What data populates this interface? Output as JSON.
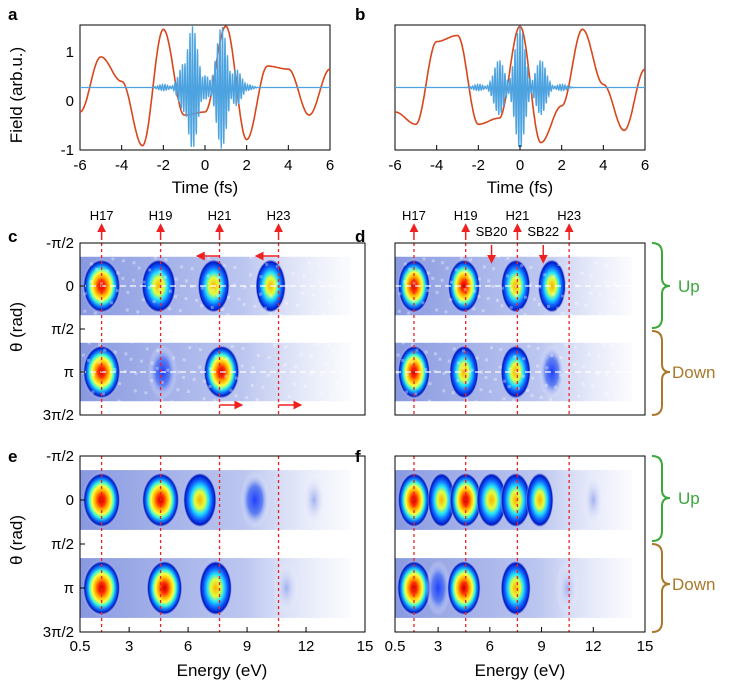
{
  "panels": {
    "a": {
      "letter": "a",
      "xlabel": "Time (fs)",
      "ylabel": "Field (arb.u.)",
      "xticks": [
        "-6",
        "-4",
        "-2",
        "0",
        "2",
        "4",
        "6"
      ],
      "yticks": [
        "1",
        "0",
        "-1"
      ]
    },
    "b": {
      "letter": "b",
      "xlabel": "Time (fs)",
      "xticks": [
        "-6",
        "-4",
        "-2",
        "0",
        "2",
        "4",
        "6"
      ]
    },
    "c": {
      "letter": "c",
      "ylabel": "θ (rad)",
      "harmonics": [
        "H17",
        "H19",
        "H21",
        "H23"
      ],
      "yticks": [
        "-π/2",
        "0",
        "π/2",
        "π",
        "3π/2"
      ]
    },
    "d": {
      "letter": "d",
      "harmonics": [
        "H17",
        "H19",
        "H21",
        "H23"
      ],
      "sidebands": [
        "SB20",
        "SB22"
      ]
    },
    "e": {
      "letter": "e",
      "ylabel": "θ (rad)",
      "xlabel": "Energy (eV)",
      "yticks": [
        "-π/2",
        "0",
        "π/2",
        "π",
        "3π/2"
      ],
      "xticks": [
        "0.5",
        "3",
        "6",
        "9",
        "12",
        "15"
      ]
    },
    "f": {
      "letter": "f",
      "xlabel": "Energy (eV)",
      "xticks": [
        "0.5",
        "3",
        "6",
        "9",
        "12",
        "15"
      ]
    }
  },
  "braces": {
    "up": "Up",
    "down": "Down"
  },
  "colors": {
    "red": "#d9461b",
    "blue": "#4da3e0",
    "up": "#3aa83a",
    "down": "#a9782b",
    "marker": "#f02020"
  },
  "chart_data": [
    {
      "panel": "a",
      "type": "line",
      "xlim": [
        -6,
        6
      ],
      "ylim": [
        -1,
        1
      ],
      "series": [
        {
          "kind": "IR field",
          "color": "#d9461b",
          "x": [
            -6,
            -5,
            -4,
            -3,
            -2,
            -1,
            0,
            1,
            2,
            3,
            4,
            5,
            6
          ],
          "values": [
            -0.4,
            0.5,
            0.1,
            -0.95,
            0.95,
            -0.45,
            -0.4,
            1.0,
            -0.85,
            0.35,
            0.3,
            -0.45,
            0.3
          ]
        },
        {
          "kind": "XUV pulse",
          "color": "#4da3e0",
          "x": [
            -2,
            -1,
            -0.6,
            0,
            0.8,
            1.5,
            2
          ],
          "values": [
            0.05,
            0.4,
            1.0,
            0.2,
            1.0,
            0.3,
            0.05
          ]
        }
      ]
    },
    {
      "panel": "b",
      "type": "line",
      "xlim": [
        -6,
        6
      ],
      "ylim": [
        -1,
        1
      ],
      "series": [
        {
          "kind": "IR field",
          "color": "#d9461b",
          "x": [
            -6,
            -5,
            -4,
            -3,
            -2,
            -1,
            0,
            1,
            2,
            3,
            4,
            5,
            6
          ],
          "values": [
            -0.4,
            -0.6,
            0.75,
            0.85,
            -0.6,
            -0.5,
            1.0,
            -0.9,
            -0.3,
            0.95,
            0.05,
            -0.7,
            0.3
          ]
        },
        {
          "kind": "XUV pulse",
          "color": "#4da3e0",
          "x": [
            -2,
            -1,
            0,
            1,
            2
          ],
          "values": [
            0.05,
            0.45,
            1.0,
            0.45,
            0.05
          ]
        }
      ]
    },
    {
      "panel": "c",
      "type": "heatmap",
      "xlim": [
        0.5,
        15
      ],
      "blobs": [
        {
          "e": 1.6,
          "theta": "0",
          "i": 1.0
        },
        {
          "e": 4.5,
          "theta": "0",
          "i": 0.8
        },
        {
          "e": 7.3,
          "theta": "0",
          "i": 0.65
        },
        {
          "e": 10.2,
          "theta": "0",
          "i": 0.55
        },
        {
          "e": 1.6,
          "theta": "π",
          "i": 1.0
        },
        {
          "e": 7.7,
          "theta": "π",
          "i": 0.9
        },
        {
          "e": 4.7,
          "theta": "π",
          "i": 0.45
        }
      ]
    },
    {
      "panel": "d",
      "type": "heatmap",
      "xlim": [
        0.5,
        15
      ],
      "blobs": [
        {
          "e": 1.6,
          "theta": "0",
          "i": 0.9
        },
        {
          "e": 4.5,
          "theta": "0",
          "i": 0.9
        },
        {
          "e": 7.5,
          "theta": "0",
          "i": 0.7
        },
        {
          "e": 9.6,
          "theta": "0",
          "i": 0.6
        },
        {
          "e": 1.6,
          "theta": "π",
          "i": 0.9
        },
        {
          "e": 4.5,
          "theta": "π",
          "i": 0.7
        },
        {
          "e": 7.5,
          "theta": "π",
          "i": 0.75
        },
        {
          "e": 9.6,
          "theta": "π",
          "i": 0.4
        }
      ]
    },
    {
      "panel": "e",
      "type": "heatmap",
      "xlim": [
        0.5,
        15
      ],
      "blobs": [
        {
          "e": 1.6,
          "theta": "0",
          "i": 1.0
        },
        {
          "e": 4.6,
          "theta": "0",
          "i": 1.0
        },
        {
          "e": 6.6,
          "theta": "0",
          "i": 0.75
        },
        {
          "e": 9.4,
          "theta": "0",
          "i": 0.45
        },
        {
          "e": 12.4,
          "theta": "0",
          "i": 0.12
        },
        {
          "e": 1.6,
          "theta": "π",
          "i": 1.0
        },
        {
          "e": 4.8,
          "theta": "π",
          "i": 0.9
        },
        {
          "e": 7.4,
          "theta": "π",
          "i": 0.7
        },
        {
          "e": 11.0,
          "theta": "π",
          "i": 0.25
        }
      ]
    },
    {
      "panel": "f",
      "type": "heatmap",
      "xlim": [
        0.5,
        15
      ],
      "blobs": [
        {
          "e": 1.6,
          "theta": "0",
          "i": 0.9
        },
        {
          "e": 3.2,
          "theta": "0",
          "i": 0.55
        },
        {
          "e": 4.6,
          "theta": "0",
          "i": 0.9
        },
        {
          "e": 6.1,
          "theta": "0",
          "i": 0.75
        },
        {
          "e": 7.5,
          "theta": "0",
          "i": 0.75
        },
        {
          "e": 8.9,
          "theta": "0",
          "i": 0.55
        },
        {
          "e": 12.0,
          "theta": "0",
          "i": 0.12
        },
        {
          "e": 1.6,
          "theta": "π",
          "i": 1.0
        },
        {
          "e": 3.0,
          "theta": "π",
          "i": 0.35
        },
        {
          "e": 4.5,
          "theta": "π",
          "i": 1.0
        },
        {
          "e": 7.5,
          "theta": "π",
          "i": 0.75
        },
        {
          "e": 10.5,
          "theta": "π",
          "i": 0.25
        }
      ]
    }
  ]
}
